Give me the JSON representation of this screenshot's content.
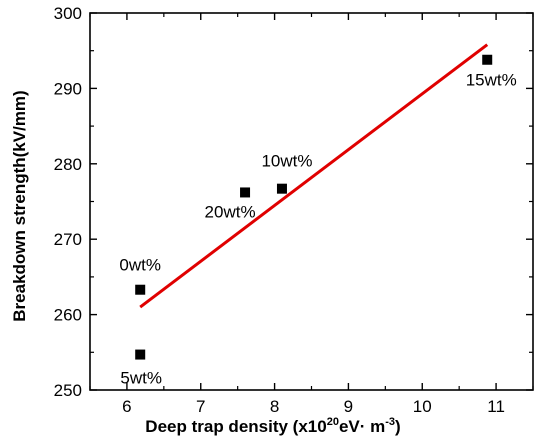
{
  "chart_data": {
    "type": "scatter",
    "xlabel": "Deep trap density (x10",
    "xlabel_sup": "20",
    "xlabel_mid": "eV· m",
    "xlabel_sup2": "-3",
    "xlabel_end": ")",
    "ylabel": "Breakdown strength(kV/mm)",
    "xlim": [
      5.5,
      11.5
    ],
    "ylim": [
      250,
      300
    ],
    "x_ticks": [
      6,
      7,
      8,
      9,
      10,
      11
    ],
    "y_ticks": [
      250,
      260,
      270,
      280,
      290,
      300
    ],
    "grid": false,
    "marker_color": "#000000",
    "fit_color": "#e00000",
    "series": [
      {
        "points": [
          {
            "label": "0wt%",
            "x": 6.18,
            "y": 263.3
          },
          {
            "label": "5wt%",
            "x": 6.18,
            "y": 254.7
          },
          {
            "label": "20wt%",
            "x": 7.6,
            "y": 276.2
          },
          {
            "label": "10wt%",
            "x": 8.1,
            "y": 276.7
          },
          {
            "label": "15wt%",
            "x": 10.88,
            "y": 293.8
          }
        ]
      }
    ],
    "fit_line": {
      "x": [
        6.18,
        10.88
      ],
      "y": [
        261.0,
        295.8
      ]
    }
  }
}
